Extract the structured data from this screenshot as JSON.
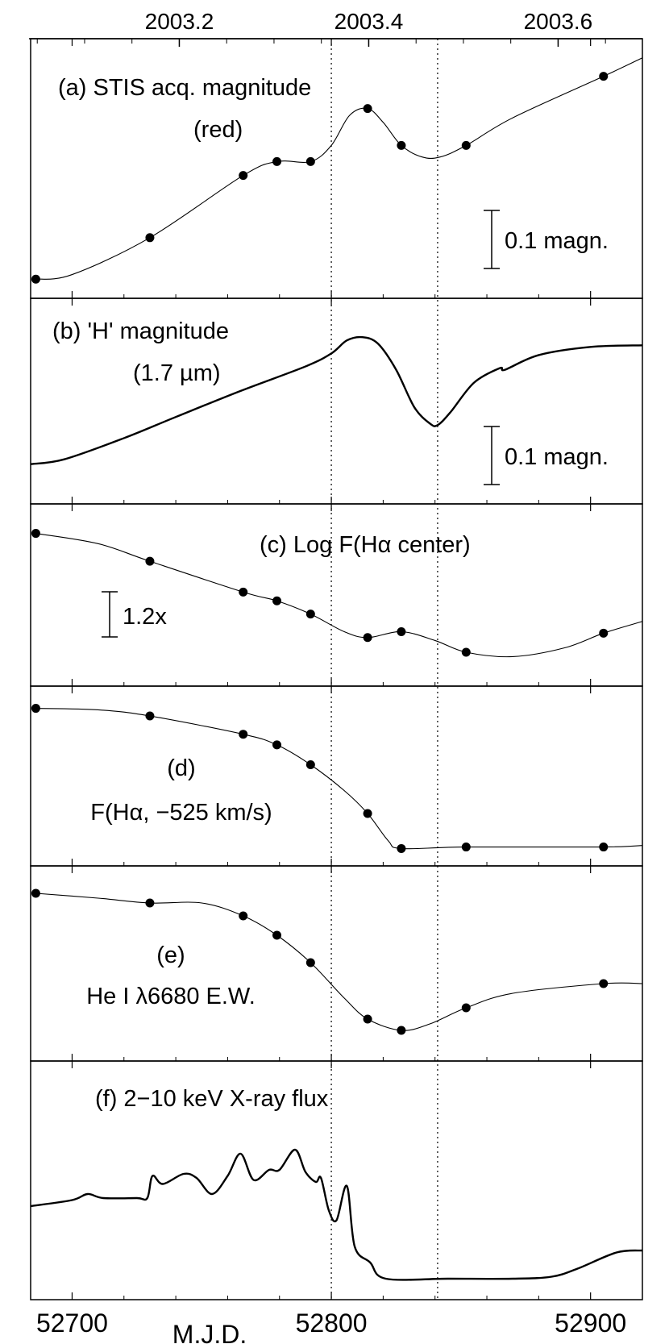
{
  "chart_data": {
    "type": "line",
    "x_axis": {
      "label": "M.J.D.",
      "range": [
        52684,
        52920
      ],
      "ticks": [
        52700,
        52800,
        52900
      ],
      "tick_labels": [
        "52700",
        "52800",
        "52900"
      ]
    },
    "top_axis": {
      "range": [
        2003.043,
        2003.689
      ],
      "ticks": [
        2003.2,
        2003.4,
        2003.6
      ],
      "tick_labels": [
        "2003.2",
        "2003.4",
        "2003.6"
      ]
    },
    "vertical_markers": [
      52800,
      52841
    ],
    "grid": false,
    "panels": [
      {
        "id": "a",
        "title_lines": [
          "(a) STIS acq. magnitude",
          "(red)"
        ],
        "scale_bar_label": "0.1 magn.",
        "y_range": [
          0,
          1
        ],
        "points": [
          {
            "x": 52686,
            "y": 0.02
          },
          {
            "x": 52730,
            "y": 0.2
          },
          {
            "x": 52766,
            "y": 0.47
          },
          {
            "x": 52779,
            "y": 0.53
          },
          {
            "x": 52792,
            "y": 0.53
          },
          {
            "x": 52814,
            "y": 0.76
          },
          {
            "x": 52827,
            "y": 0.6
          },
          {
            "x": 52852,
            "y": 0.6
          },
          {
            "x": 52905,
            "y": 0.9
          }
        ],
        "curve": [
          [
            52686,
            0.02
          ],
          [
            52700,
            0.04
          ],
          [
            52730,
            0.2
          ],
          [
            52766,
            0.47
          ],
          [
            52779,
            0.53
          ],
          [
            52792,
            0.53
          ],
          [
            52800,
            0.6
          ],
          [
            52807,
            0.73
          ],
          [
            52814,
            0.76
          ],
          [
            52820,
            0.7
          ],
          [
            52827,
            0.6
          ],
          [
            52835,
            0.55
          ],
          [
            52842,
            0.55
          ],
          [
            52852,
            0.6
          ],
          [
            52870,
            0.72
          ],
          [
            52905,
            0.9
          ],
          [
            52920,
            0.98
          ]
        ]
      },
      {
        "id": "b",
        "title_lines": [
          "(b) 'H' magnitude",
          "(1.7 µm)"
        ],
        "scale_bar_label": "0.1 magn.",
        "y_range": [
          0,
          1
        ],
        "points": [],
        "curve": [
          [
            52684,
            0.12
          ],
          [
            52697,
            0.15
          ],
          [
            52720,
            0.28
          ],
          [
            52740,
            0.41
          ],
          [
            52765,
            0.57
          ],
          [
            52790,
            0.72
          ],
          [
            52800,
            0.8
          ],
          [
            52806,
            0.88
          ],
          [
            52812,
            0.9
          ],
          [
            52818,
            0.86
          ],
          [
            52825,
            0.7
          ],
          [
            52832,
            0.47
          ],
          [
            52838,
            0.37
          ],
          [
            52841,
            0.36
          ],
          [
            52846,
            0.44
          ],
          [
            52855,
            0.62
          ],
          [
            52865,
            0.71
          ],
          [
            52867,
            0.7
          ],
          [
            52880,
            0.79
          ],
          [
            52900,
            0.84
          ],
          [
            52920,
            0.85
          ]
        ]
      },
      {
        "id": "c",
        "title_lines": [
          "(c) Log F(Hα center)"
        ],
        "scale_bar_label": "1.2x",
        "y_range": [
          0,
          1
        ],
        "points": [
          {
            "x": 52686,
            "y": 0.92
          },
          {
            "x": 52730,
            "y": 0.73
          },
          {
            "x": 52766,
            "y": 0.52
          },
          {
            "x": 52779,
            "y": 0.46
          },
          {
            "x": 52792,
            "y": 0.37
          },
          {
            "x": 52814,
            "y": 0.21
          },
          {
            "x": 52827,
            "y": 0.25
          },
          {
            "x": 52852,
            "y": 0.11
          },
          {
            "x": 52905,
            "y": 0.24
          }
        ],
        "curve": [
          [
            52686,
            0.92
          ],
          [
            52710,
            0.85
          ],
          [
            52730,
            0.73
          ],
          [
            52766,
            0.52
          ],
          [
            52779,
            0.46
          ],
          [
            52792,
            0.37
          ],
          [
            52805,
            0.25
          ],
          [
            52814,
            0.21
          ],
          [
            52827,
            0.25
          ],
          [
            52840,
            0.19
          ],
          [
            52852,
            0.11
          ],
          [
            52870,
            0.08
          ],
          [
            52890,
            0.14
          ],
          [
            52905,
            0.24
          ],
          [
            52920,
            0.32
          ]
        ]
      },
      {
        "id": "d",
        "title_lines": [
          "(d)",
          "F(Hα, −525 km/s)"
        ],
        "scale_bar_label": "",
        "y_range": [
          0,
          1
        ],
        "points": [
          {
            "x": 52686,
            "y": 0.96
          },
          {
            "x": 52730,
            "y": 0.91
          },
          {
            "x": 52766,
            "y": 0.79
          },
          {
            "x": 52779,
            "y": 0.72
          },
          {
            "x": 52792,
            "y": 0.59
          },
          {
            "x": 52814,
            "y": 0.27
          },
          {
            "x": 52827,
            "y": 0.04
          },
          {
            "x": 52852,
            "y": 0.05
          },
          {
            "x": 52905,
            "y": 0.05
          }
        ],
        "curve": [
          [
            52686,
            0.96
          ],
          [
            52710,
            0.95
          ],
          [
            52730,
            0.91
          ],
          [
            52766,
            0.79
          ],
          [
            52779,
            0.72
          ],
          [
            52792,
            0.59
          ],
          [
            52805,
            0.42
          ],
          [
            52814,
            0.27
          ],
          [
            52822,
            0.09
          ],
          [
            52827,
            0.04
          ],
          [
            52852,
            0.05
          ],
          [
            52905,
            0.05
          ],
          [
            52920,
            0.06
          ]
        ]
      },
      {
        "id": "e",
        "title_lines": [
          "(e)",
          "He I λ6680 E.W."
        ],
        "scale_bar_label": "",
        "y_range": [
          0,
          1
        ],
        "points": [
          {
            "x": 52686,
            "y": 0.93
          },
          {
            "x": 52730,
            "y": 0.87
          },
          {
            "x": 52766,
            "y": 0.79
          },
          {
            "x": 52779,
            "y": 0.67
          },
          {
            "x": 52792,
            "y": 0.5
          },
          {
            "x": 52814,
            "y": 0.15
          },
          {
            "x": 52827,
            "y": 0.08
          },
          {
            "x": 52852,
            "y": 0.22
          },
          {
            "x": 52905,
            "y": 0.37
          }
        ],
        "curve": [
          [
            52686,
            0.93
          ],
          [
            52710,
            0.9
          ],
          [
            52730,
            0.87
          ],
          [
            52750,
            0.87
          ],
          [
            52766,
            0.79
          ],
          [
            52779,
            0.67
          ],
          [
            52792,
            0.5
          ],
          [
            52805,
            0.28
          ],
          [
            52814,
            0.15
          ],
          [
            52827,
            0.08
          ],
          [
            52838,
            0.12
          ],
          [
            52852,
            0.22
          ],
          [
            52870,
            0.31
          ],
          [
            52905,
            0.37
          ],
          [
            52920,
            0.37
          ]
        ]
      },
      {
        "id": "f",
        "title_lines": [
          "(f) 2−10 keV X-ray flux"
        ],
        "scale_bar_label": "",
        "y_range": [
          0,
          1
        ],
        "points": [],
        "curve": [
          [
            52684,
            0.4
          ],
          [
            52700,
            0.43
          ],
          [
            52706,
            0.46
          ],
          [
            52712,
            0.44
          ],
          [
            52725,
            0.44
          ],
          [
            52729,
            0.44
          ],
          [
            52731,
            0.55
          ],
          [
            52735,
            0.51
          ],
          [
            52743,
            0.56
          ],
          [
            52748,
            0.54
          ],
          [
            52754,
            0.46
          ],
          [
            52760,
            0.55
          ],
          [
            52765,
            0.66
          ],
          [
            52770,
            0.53
          ],
          [
            52776,
            0.58
          ],
          [
            52780,
            0.58
          ],
          [
            52786,
            0.68
          ],
          [
            52790,
            0.57
          ],
          [
            52794,
            0.52
          ],
          [
            52796,
            0.54
          ],
          [
            52799,
            0.38
          ],
          [
            52802,
            0.33
          ],
          [
            52806,
            0.5
          ],
          [
            52809,
            0.2
          ],
          [
            52815,
            0.12
          ],
          [
            52821,
            0.04
          ],
          [
            52845,
            0.04
          ],
          [
            52870,
            0.04
          ],
          [
            52885,
            0.05
          ],
          [
            52895,
            0.09
          ],
          [
            52910,
            0.17
          ],
          [
            52920,
            0.18
          ]
        ]
      }
    ]
  }
}
